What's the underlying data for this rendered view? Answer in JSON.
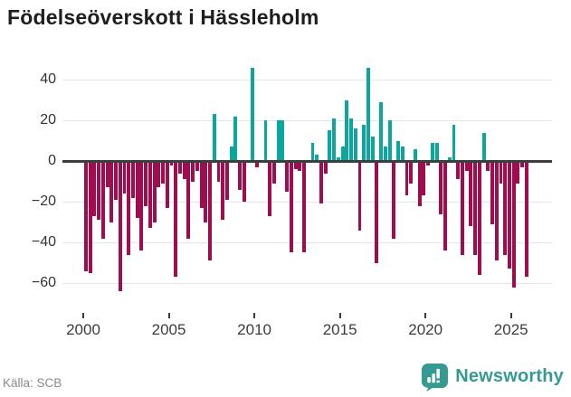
{
  "title": "Födelseöverskott i Hässleholm",
  "source": "Källa: SCB",
  "brand": {
    "name": "Newsworthy",
    "color": "#379a92"
  },
  "chart_data": {
    "type": "bar",
    "title": "Födelseöverskott i Hässleholm",
    "period": "quarterly",
    "x_start_year": 2000,
    "x_end_year": 2025,
    "x_ticks": [
      2000,
      2005,
      2010,
      2015,
      2020,
      2025
    ],
    "y_ticks": [
      40,
      20,
      0,
      -20,
      -40,
      -60
    ],
    "ylim": [
      -68,
      50
    ],
    "grid": true,
    "legend": "none",
    "colors": {
      "positive": "#0ba79e",
      "negative": "#a00d4e"
    },
    "values": [
      -54,
      -55,
      -27,
      -29,
      -38,
      -13,
      -30,
      -19,
      -64,
      -16,
      -46,
      -18,
      -28,
      -44,
      -22,
      -33,
      -30,
      -13,
      -11,
      -23,
      -2,
      -57,
      -6,
      -9,
      -38,
      -10,
      -5,
      -23,
      -30,
      -49,
      23,
      -10,
      -29,
      -19,
      7,
      22,
      -14,
      -20,
      0,
      46,
      -3,
      0,
      20,
      -27,
      -11,
      20,
      20,
      -15,
      -45,
      -4,
      -5,
      -45,
      0,
      9,
      3,
      -21,
      -6,
      15,
      21,
      2,
      7,
      30,
      21,
      16,
      -34,
      18,
      46,
      12,
      -50,
      29,
      7,
      20,
      -38,
      10,
      7,
      -17,
      -11,
      6,
      -22,
      -17,
      -2,
      9,
      9,
      -26,
      -44,
      2,
      18,
      -9,
      -46,
      -5,
      -32,
      -46,
      -56,
      14,
      -5,
      -31,
      -49,
      -11,
      -46,
      -53,
      -62,
      -11,
      -3,
      -57
    ]
  }
}
